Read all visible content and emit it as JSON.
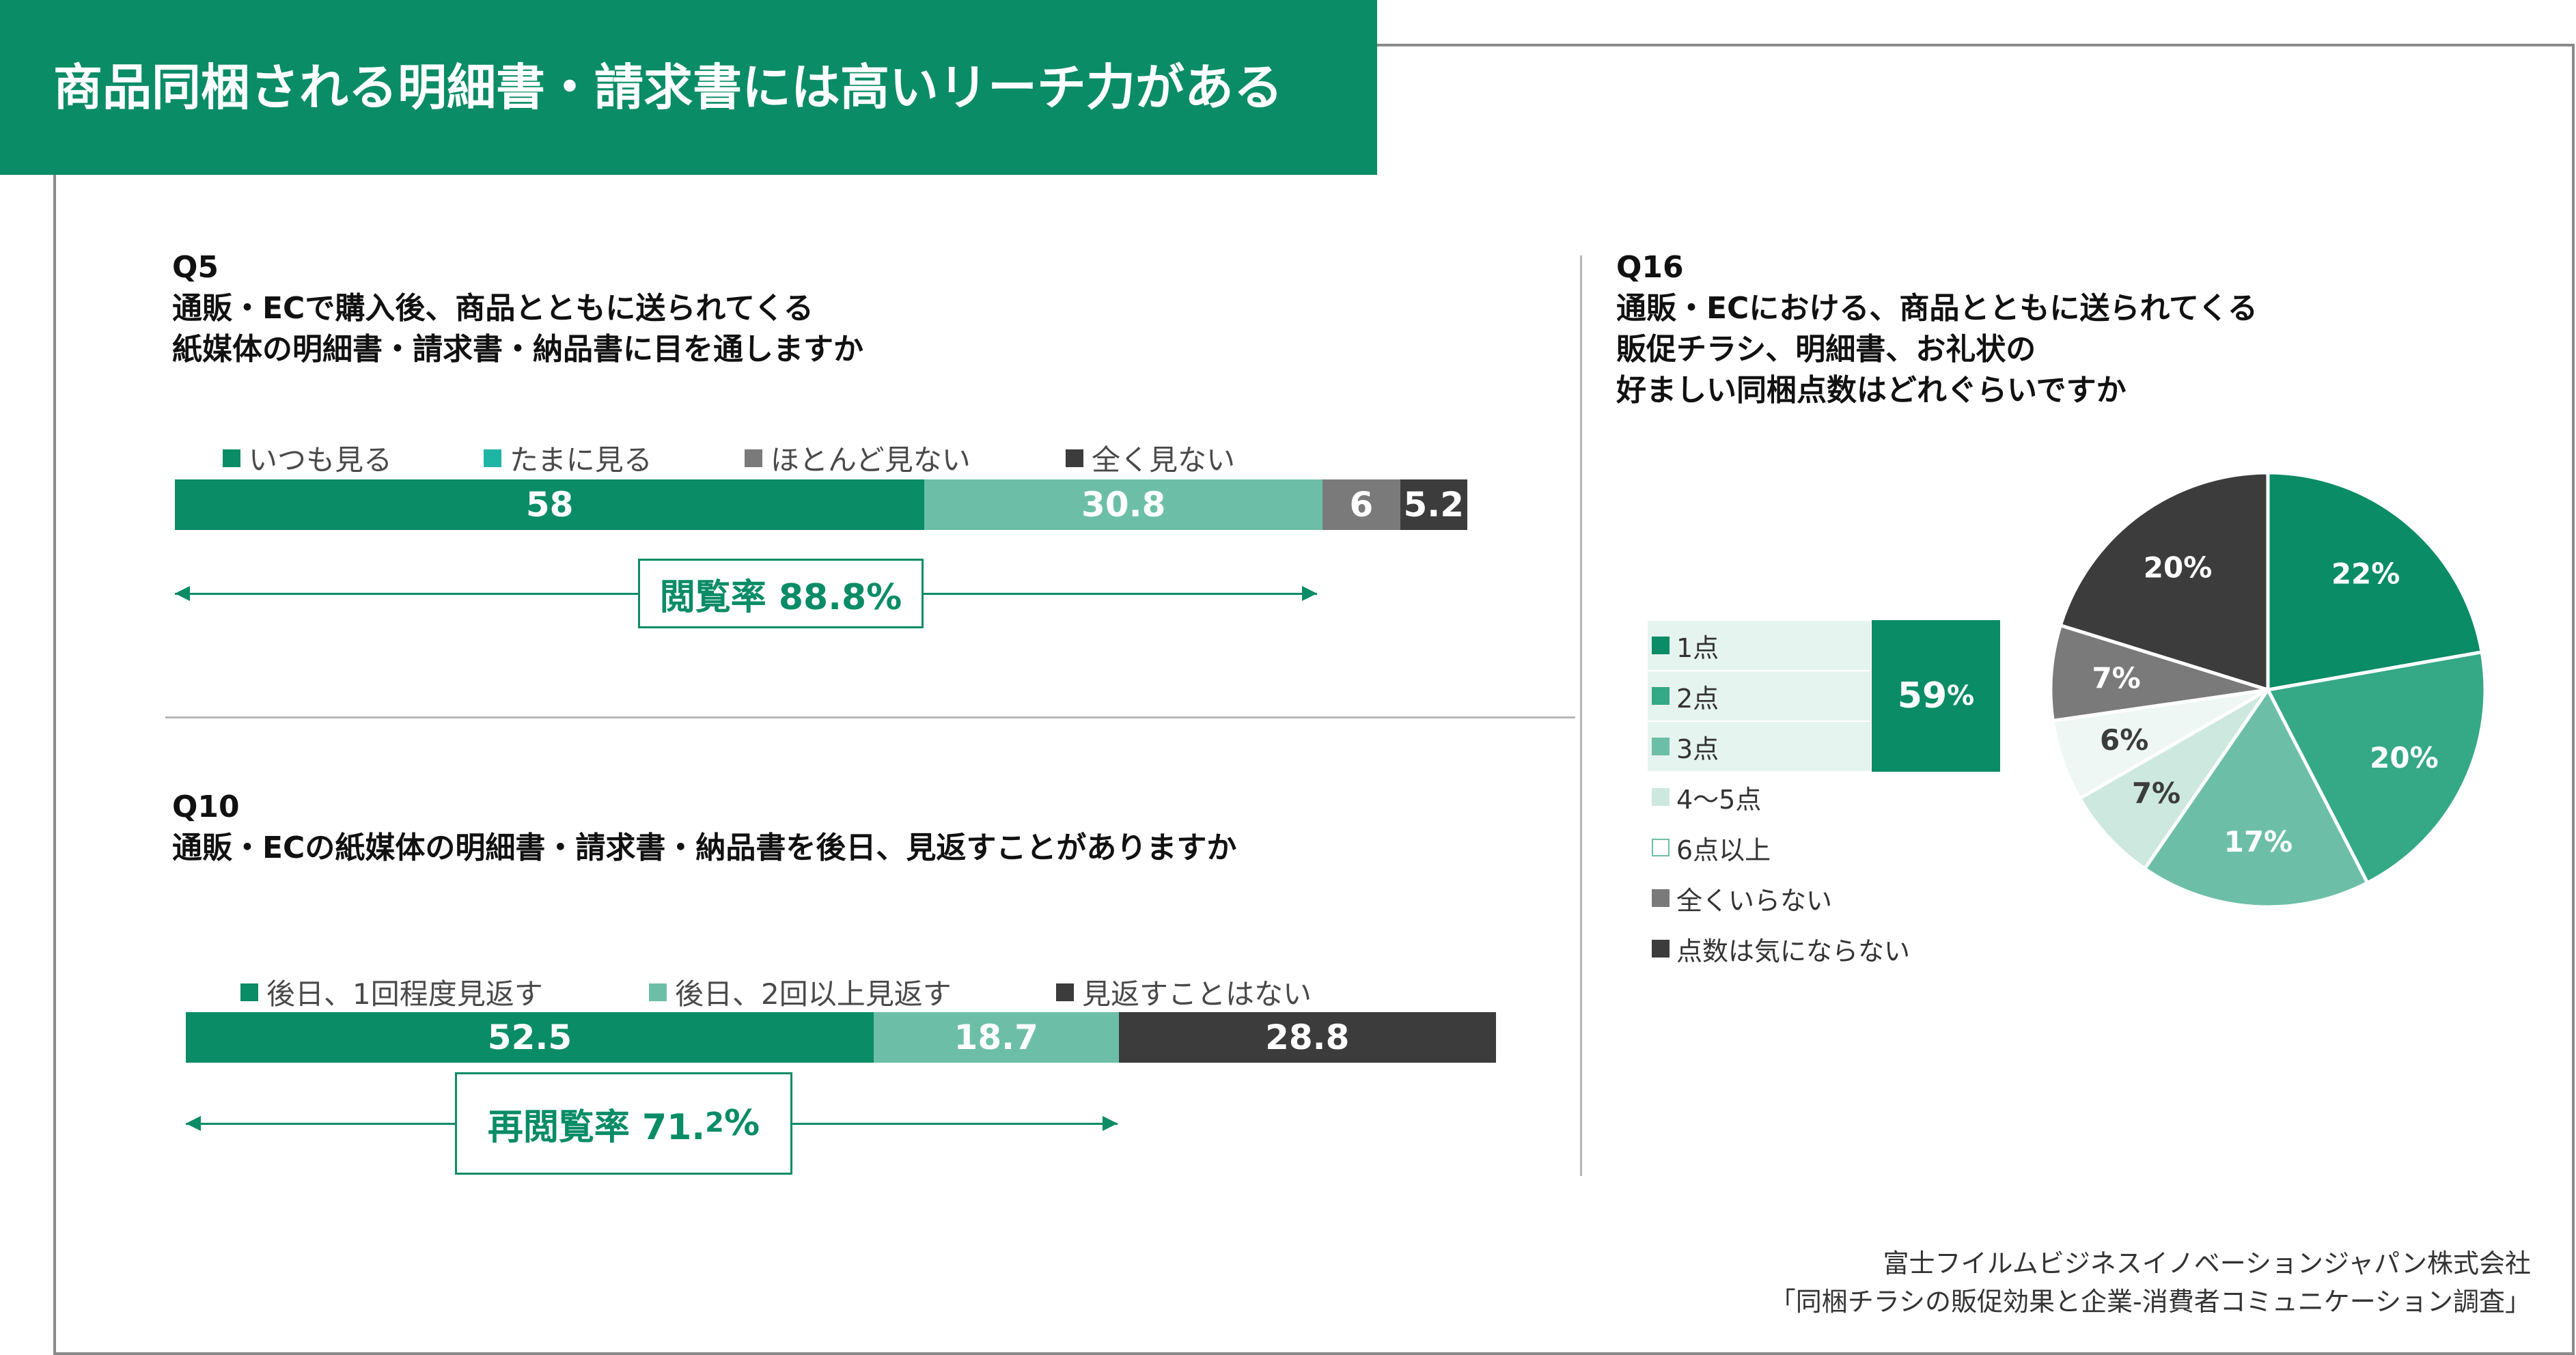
{
  "title": "商品同梱される明細書・請求書には高いリーチ力がある",
  "q5": {
    "label": "Q5",
    "line1": "通販・ECで購入後、商品とともに送られてくる",
    "line2": "紙媒体の明細書・請求書・納品書に目を通しますか",
    "callout": "閲覧率 88.8%"
  },
  "q10": {
    "label": "Q10",
    "line1": "通販・ECの紙媒体の明細書・請求書・納品書を後日、見返すことがありますか",
    "callout_main": "再閲覧率 71.",
    "callout_small": "2",
    "callout_pct": "%"
  },
  "q16": {
    "label": "Q16",
    "line1": "通販・ECにおける、商品とともに送られてくる",
    "line2": "販促チラシ、明細書、お礼状の",
    "line3": "好ましい同梱点数はどれぐらいですか",
    "aggregate_value": "59",
    "aggregate_pct": "%"
  },
  "source": {
    "line1": "富士フイルムビジネスイノベーションジャパン株式会社",
    "line2": "「同梱チラシの販促効果と企業-消費者コミュニケーション調査」"
  },
  "colors": {
    "brand": "#0a8c66",
    "s_dark_green": "#0a8c66",
    "s_light_green": "#6cbfa6",
    "s_teal": "#1fb5a5",
    "s_gray": "#7a7a7a",
    "s_dark": "#3c3c3c"
  },
  "chart_data": [
    {
      "type": "bar",
      "orientation": "horizontal-stacked",
      "id": "Q5",
      "categories": [
        ""
      ],
      "series": [
        {
          "name": "いつも見る",
          "values": [
            58
          ],
          "color": "#0a8c66",
          "legend_color": "#0a8c66"
        },
        {
          "name": "たまに見る",
          "values": [
            30.8
          ],
          "color": "#6cbfa6",
          "legend_color": "#1fb5a5"
        },
        {
          "name": "ほとんど見ない",
          "values": [
            6
          ],
          "color": "#7a7a7a",
          "legend_color": "#7a7a7a"
        },
        {
          "name": "全く見ない",
          "values": [
            5.2
          ],
          "color": "#3c3c3c",
          "legend_color": "#3c3c3c"
        }
      ],
      "labels": [
        "58",
        "30.8",
        "6",
        "5.2"
      ],
      "legend_position": "top-left"
    },
    {
      "type": "bar",
      "orientation": "horizontal-stacked",
      "id": "Q10",
      "categories": [
        ""
      ],
      "series": [
        {
          "name": "後日、1回程度見返す",
          "values": [
            52.5
          ],
          "color": "#0a8c66"
        },
        {
          "name": "後日、2回以上見返す",
          "values": [
            18.7
          ],
          "color": "#6cbfa6"
        },
        {
          "name": "見返すことはない",
          "values": [
            28.8
          ],
          "color": "#3c3c3c"
        }
      ],
      "labels": [
        "52.5",
        "18.7",
        "28.8"
      ],
      "legend_position": "top-left"
    },
    {
      "type": "pie",
      "id": "Q16",
      "slices": [
        {
          "name": "1点",
          "value": 22,
          "label": "22%",
          "color": "#0a8c66"
        },
        {
          "name": "2点",
          "value": 20,
          "label": "20%",
          "color": "#35a886"
        },
        {
          "name": "3点",
          "value": 17,
          "label": "17%",
          "color": "#6cbfa6"
        },
        {
          "name": "4〜5点",
          "value": 7,
          "label": "7%",
          "color": "#cde8df"
        },
        {
          "name": "6点以上",
          "value": 6,
          "label": "6%",
          "color": "#eef7f3"
        },
        {
          "name": "全くいらない",
          "value": 7,
          "label": "7%",
          "color": "#7a7a7a"
        },
        {
          "name": "点数は気にならない",
          "value": 20,
          "label": "20%",
          "color": "#3c3c3c"
        }
      ],
      "legend_position": "left"
    }
  ]
}
